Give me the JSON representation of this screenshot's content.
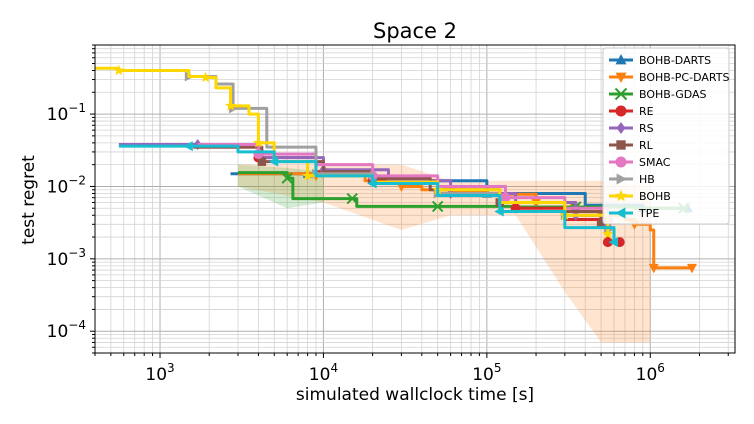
{
  "chart_data": {
    "type": "line",
    "title": "Space 2",
    "xlabel": "simulated wallclock time [s]",
    "ylabel": "test regret",
    "xscale": "log",
    "yscale": "log",
    "xlim": [
      400,
      3300000
    ],
    "ylim": [
      5e-05,
      0.9
    ],
    "grid": true,
    "legend_position": "top-right",
    "x_ticks": [
      {
        "value": 1000,
        "base": "10",
        "exp": "3"
      },
      {
        "value": 10000,
        "base": "10",
        "exp": "4"
      },
      {
        "value": 100000,
        "base": "10",
        "exp": "5"
      },
      {
        "value": 1000000,
        "base": "10",
        "exp": "6"
      }
    ],
    "y_ticks": [
      {
        "value": 0.1,
        "base": "10",
        "exp": "−1"
      },
      {
        "value": 0.01,
        "base": "10",
        "exp": "−2"
      },
      {
        "value": 0.001,
        "base": "10",
        "exp": "−3"
      },
      {
        "value": 0.0001,
        "base": "10",
        "exp": "−4"
      }
    ],
    "series": [
      {
        "name": "BOHB-DARTS",
        "color": "#1f77b4",
        "marker": "triangle-up",
        "points": [
          [
            2700,
            0.015
          ],
          [
            8000,
            0.015
          ],
          [
            20000,
            0.012
          ],
          [
            100000,
            0.008
          ],
          [
            400000,
            0.0055
          ],
          [
            900000,
            0.005
          ],
          [
            1700000,
            0.005
          ]
        ]
      },
      {
        "name": "BOHB-PC-DARTS",
        "color": "#ff7f0e",
        "marker": "triangle-down",
        "points": [
          [
            3000,
            0.015
          ],
          [
            9000,
            0.014
          ],
          [
            18000,
            0.012
          ],
          [
            30000,
            0.01
          ],
          [
            40000,
            0.009
          ],
          [
            60000,
            0.0085
          ],
          [
            100000,
            0.0078
          ],
          [
            200000,
            0.006
          ],
          [
            330000,
            0.0052
          ],
          [
            500000,
            0.004
          ],
          [
            700000,
            0.0035
          ],
          [
            800000,
            0.003
          ],
          [
            1000000,
            0.0025
          ],
          [
            1050000,
            0.00075
          ],
          [
            1800000,
            0.00075
          ]
        ]
      },
      {
        "name": "BOHB-GDAS",
        "color": "#2ca02c",
        "marker": "x",
        "points": [
          [
            3000,
            0.0155
          ],
          [
            6000,
            0.013
          ],
          [
            6500,
            0.0068
          ],
          [
            15000,
            0.0068
          ],
          [
            16000,
            0.0053
          ],
          [
            50000,
            0.0053
          ],
          [
            150000,
            0.0052
          ],
          [
            350000,
            0.0052
          ],
          [
            800000,
            0.005
          ],
          [
            1600000,
            0.005
          ]
        ]
      },
      {
        "name": "RE",
        "color": "#d62728",
        "marker": "circle",
        "points": [
          [
            1600,
            0.035
          ],
          [
            4000,
            0.025
          ],
          [
            9000,
            0.016
          ],
          [
            20000,
            0.012
          ],
          [
            50000,
            0.008
          ],
          [
            150000,
            0.005
          ],
          [
            300000,
            0.0035
          ],
          [
            550000,
            0.0017
          ],
          [
            650000,
            0.0017
          ]
        ]
      },
      {
        "name": "RS",
        "color": "#9467bd",
        "marker": "diamond",
        "points": [
          [
            560,
            0.038
          ],
          [
            1700,
            0.038
          ],
          [
            4000,
            0.025
          ],
          [
            10000,
            0.017
          ],
          [
            25000,
            0.012
          ],
          [
            60000,
            0.008
          ],
          [
            150000,
            0.006
          ],
          [
            350000,
            0.004
          ],
          [
            550000,
            0.003
          ]
        ]
      },
      {
        "name": "RL",
        "color": "#8c564b",
        "marker": "square",
        "points": [
          [
            1600,
            0.035
          ],
          [
            4200,
            0.022
          ],
          [
            10000,
            0.016
          ],
          [
            20000,
            0.013
          ],
          [
            45000,
            0.009
          ],
          [
            120000,
            0.006
          ],
          [
            300000,
            0.0045
          ],
          [
            500000,
            0.003
          ]
        ]
      },
      {
        "name": "SMAC",
        "color": "#e377c2",
        "marker": "circle",
        "points": [
          [
            1700,
            0.038
          ],
          [
            4000,
            0.028
          ],
          [
            9000,
            0.02
          ],
          [
            20000,
            0.014
          ],
          [
            50000,
            0.01
          ],
          [
            130000,
            0.007
          ],
          [
            300000,
            0.005
          ],
          [
            550000,
            0.0035
          ]
        ]
      },
      {
        "name": "HB",
        "color": "#a0a0a0",
        "marker": "triangle-right",
        "points": [
          [
            560,
            0.4
          ],
          [
            1500,
            0.33
          ],
          [
            2200,
            0.26
          ],
          [
            2800,
            0.12
          ],
          [
            4500,
            0.035
          ],
          [
            9000,
            0.015
          ],
          [
            20000,
            0.011
          ],
          [
            50000,
            0.008
          ],
          [
            120000,
            0.006
          ],
          [
            300000,
            0.004
          ],
          [
            550000,
            0.0025
          ]
        ]
      },
      {
        "name": "BOHB",
        "color": "#ffd700",
        "marker": "star",
        "points": [
          [
            400,
            0.43
          ],
          [
            560,
            0.4
          ],
          [
            1500,
            0.33
          ],
          [
            1900,
            0.32
          ],
          [
            2200,
            0.23
          ],
          [
            2700,
            0.13
          ],
          [
            3500,
            0.1
          ],
          [
            4000,
            0.04
          ],
          [
            5000,
            0.022
          ],
          [
            8000,
            0.014
          ],
          [
            20000,
            0.0115
          ],
          [
            50000,
            0.009
          ],
          [
            120000,
            0.006
          ],
          [
            300000,
            0.004
          ],
          [
            550000,
            0.0022
          ]
        ]
      },
      {
        "name": "TPE",
        "color": "#17becf",
        "marker": "triangle-left",
        "points": [
          [
            560,
            0.036
          ],
          [
            1500,
            0.036
          ],
          [
            3000,
            0.03
          ],
          [
            5000,
            0.022
          ],
          [
            9000,
            0.014
          ],
          [
            20000,
            0.011
          ],
          [
            50000,
            0.0075
          ],
          [
            120000,
            0.0045
          ],
          [
            300000,
            0.0027
          ],
          [
            600000,
            0.0017
          ]
        ]
      }
    ],
    "bands": [
      {
        "series": "BOHB-PC-DARTS",
        "color": "#ff7f0e",
        "upper": [
          [
            3000,
            0.02
          ],
          [
            10000,
            0.02
          ],
          [
            30000,
            0.02
          ],
          [
            60000,
            0.012
          ],
          [
            150000,
            0.012
          ],
          [
            300000,
            0.012
          ],
          [
            500000,
            0.012
          ],
          [
            1000000,
            0.01
          ]
        ],
        "lower": [
          [
            3000,
            0.01
          ],
          [
            10000,
            0.006
          ],
          [
            30000,
            0.0025
          ],
          [
            60000,
            0.004
          ],
          [
            150000,
            0.004
          ],
          [
            300000,
            0.00035
          ],
          [
            500000,
            7e-05
          ],
          [
            1000000,
            7e-05
          ]
        ]
      },
      {
        "series": "BOHB-GDAS",
        "color": "#2ca02c",
        "upper": [
          [
            3000,
            0.02
          ],
          [
            6000,
            0.018
          ],
          [
            10000,
            0.016
          ]
        ],
        "lower": [
          [
            3000,
            0.01
          ],
          [
            6000,
            0.005
          ],
          [
            10000,
            0.006
          ]
        ]
      }
    ]
  }
}
